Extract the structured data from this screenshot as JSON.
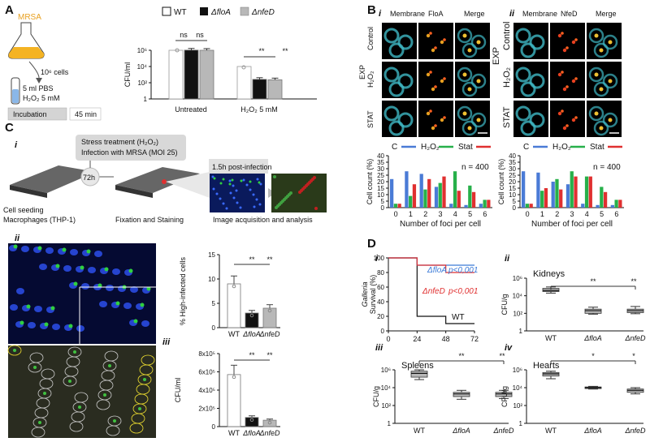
{
  "panels": {
    "A": "A",
    "B": "B",
    "C": "C",
    "D": "D",
    "i": "i",
    "ii": "ii",
    "iii": "iii",
    "iv": "iv"
  },
  "colors": {
    "cyan": "#3fb8c4",
    "blue": "#4a7bd6",
    "red": "#e03030",
    "green": "#27b04a",
    "gray": "#b8b8b8",
    "dark": "#111111",
    "loglines": "#2a6fc0"
  },
  "schematicA": {
    "flask": "MRSA",
    "cells": "10⁶ cells",
    "pbs": "5 ml PBS",
    "h2o2": "H₂O₂ 5 mM",
    "incubation": "Incubation",
    "time": "45 min"
  },
  "schematicC": {
    "step1": "Stress treatment (H₂O₂)",
    "step2": "Infection with MRSA (MOI 25)",
    "hours": "72h",
    "post": "1.5h post-infection",
    "seeding": "Cell seeding",
    "macrophages": "Macrophages (THP-1)",
    "fixation": "Fixation and Staining",
    "acquisition": "Image acquisition and analysis"
  },
  "microscopy": {
    "membrane": "Membrane",
    "floa": "FloA",
    "nfed": "NfeD",
    "merge": "Merge",
    "exp": "EXP",
    "stat": "STAT",
    "control": "Control",
    "h2o2": "H₂O₂"
  },
  "legendB": [
    "C",
    "H₂O₂",
    "Stat"
  ],
  "chart_data": [
    {
      "id": "A",
      "type": "bar",
      "ylabel": "CFU/ml",
      "yscale": "log",
      "ylim": [
        1,
        1000000
      ],
      "yticks": [
        "1",
        "10²",
        "10⁴",
        "10⁶"
      ],
      "groups": [
        "Untreated",
        "H₂O₂ 5 mM"
      ],
      "series": [
        {
          "name": "WT",
          "values": [
            1000000,
            10000
          ]
        },
        {
          "name": "ΔfloA",
          "values": [
            1050000,
            260
          ]
        },
        {
          "name": "ΔnfeD",
          "values": [
            1000000,
            230
          ]
        }
      ],
      "significance": [
        "ns",
        "ns",
        "**",
        "**"
      ]
    },
    {
      "id": "Bi",
      "type": "bar",
      "ylabel": "Cell count (%)",
      "xlabel": "Number of foci per cell",
      "ylim": [
        0,
        40
      ],
      "yticks": [
        "0",
        "5",
        "10",
        "15",
        "20",
        "25",
        "30",
        "35",
        "40"
      ],
      "categories": [
        "0",
        "1",
        "2",
        "3",
        "4",
        "5",
        "6"
      ],
      "note": "n = 400",
      "series": [
        {
          "name": "C",
          "values": [
            22,
            28,
            26,
            16,
            3,
            2,
            3
          ]
        },
        {
          "name": "H₂O₂",
          "values": [
            3,
            9,
            14,
            19,
            28,
            17,
            6
          ]
        },
        {
          "name": "Stat",
          "values": [
            3,
            18,
            22,
            24,
            13,
            12,
            6
          ]
        }
      ]
    },
    {
      "id": "Bii",
      "type": "bar",
      "ylabel": "Cell count (%)",
      "xlabel": "Number of foci per cell",
      "ylim": [
        0,
        40
      ],
      "yticks": [
        "0",
        "5",
        "10",
        "15",
        "20",
        "25",
        "30",
        "35",
        "40"
      ],
      "categories": [
        "0",
        "1",
        "2",
        "3",
        "4",
        "5",
        "6"
      ],
      "note": "n = 400",
      "series": [
        {
          "name": "C",
          "values": [
            28,
            27,
            20,
            18,
            3,
            2,
            2
          ]
        },
        {
          "name": "H₂O₂",
          "values": [
            3,
            13,
            22,
            28,
            24,
            16,
            6
          ]
        },
        {
          "name": "Stat",
          "values": [
            3,
            15,
            14,
            24,
            24,
            12,
            6
          ]
        }
      ]
    },
    {
      "id": "Cii",
      "type": "bar",
      "ylabel": "% High-infected cells",
      "ylim": [
        0,
        15
      ],
      "yticks": [
        "0",
        "5",
        "10",
        "15"
      ],
      "categories": [
        "WT",
        "ΔfloA",
        "ΔnfeD"
      ],
      "values": [
        9,
        3,
        4
      ],
      "significance": [
        "**",
        "**"
      ]
    },
    {
      "id": "Ciii",
      "type": "bar",
      "ylabel": "CFU/ml",
      "ylim": [
        0,
        800000
      ],
      "yticks": [
        "0",
        "2x10⁵",
        "4x10⁵",
        "6x10⁵",
        "8x10⁵"
      ],
      "categories": [
        "WT",
        "ΔfloA",
        "ΔnfeD"
      ],
      "values": [
        570000,
        100000,
        70000
      ],
      "significance": [
        "**",
        "**"
      ]
    },
    {
      "id": "Di",
      "type": "line",
      "ylabel": "Survival (%)",
      "ytitle": "Galleria",
      "xlim": [
        0,
        72
      ],
      "ylim": [
        0,
        100
      ],
      "xticks": [
        "0",
        "24",
        "48",
        "72"
      ],
      "yticks": [
        "0",
        "20",
        "40",
        "60",
        "80",
        "100"
      ],
      "series": [
        {
          "name": "WT",
          "points": [
            [
              0,
              100
            ],
            [
              24,
              20
            ],
            [
              48,
              10
            ],
            [
              72,
              10
            ]
          ]
        },
        {
          "name": "ΔfloA",
          "pvalue": "p<0,001",
          "points": [
            [
              0,
              100
            ],
            [
              24,
              90
            ],
            [
              72,
              90
            ]
          ]
        },
        {
          "name": "ΔnfeD",
          "pvalue": "p<0,001",
          "points": [
            [
              0,
              100
            ],
            [
              24,
              90
            ],
            [
              48,
              80
            ],
            [
              72,
              80
            ]
          ]
        }
      ]
    },
    {
      "id": "Dii",
      "type": "box",
      "title": "Kidneys",
      "ylabel": "CFU/g",
      "yscale": "log",
      "yticks": [
        "1",
        "10²",
        "10⁴",
        "10⁶"
      ],
      "categories": [
        "WT",
        "ΔfloA",
        "ΔnfeD"
      ],
      "boxes": [
        [
          20000,
          30000,
          40000,
          70000,
          100000
        ],
        [
          80,
          100,
          200,
          300,
          500
        ],
        [
          90,
          120,
          200,
          300,
          600
        ]
      ],
      "significance": [
        "**",
        "**"
      ]
    },
    {
      "id": "Diii",
      "type": "box",
      "title": "Spleens",
      "ylabel": "CFU/g",
      "yscale": "log",
      "yticks": [
        "1",
        "10²",
        "10⁴",
        "10⁶"
      ],
      "categories": [
        "WT",
        "ΔfloA",
        "ΔnfeD"
      ],
      "boxes": [
        [
          80000,
          150000,
          400000,
          700000,
          1000000
        ],
        [
          500,
          1000,
          2000,
          3000,
          5000
        ],
        [
          600,
          1000,
          2000,
          3000,
          5000
        ]
      ],
      "significance": [
        "**",
        "**"
      ]
    },
    {
      "id": "Div",
      "type": "box",
      "title": "Hearts",
      "ylabel": "CFU/g",
      "yscale": "log",
      "yticks": [
        "1",
        "10²",
        "10⁴",
        "10⁶"
      ],
      "categories": [
        "WT",
        "ΔfloA",
        "ΔnfeD"
      ],
      "boxes": [
        [
          100000,
          200000,
          350000,
          500000,
          700000
        ],
        [
          7000,
          9000,
          10000,
          12000,
          14000
        ],
        [
          2000,
          3000,
          5000,
          7000,
          10000
        ]
      ],
      "significance": [
        "*",
        "*"
      ]
    }
  ]
}
